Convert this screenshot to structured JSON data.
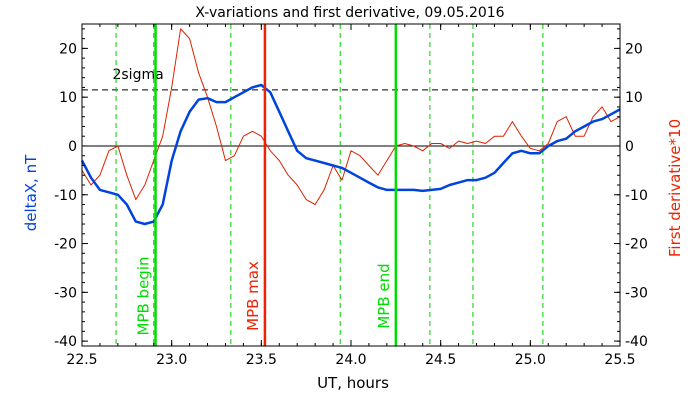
{
  "chart_data": {
    "type": "line",
    "title": "X-variations and first derivative, 09.05.2016",
    "xlabel": "UT, hours",
    "ylabel_left": "deltaX, nT",
    "ylabel_right": "First derivative*10",
    "xlim": [
      22.5,
      25.5
    ],
    "ylim": [
      -41,
      25
    ],
    "x_ticks": [
      22.5,
      23.0,
      23.5,
      24.0,
      24.5,
      25.0,
      25.5
    ],
    "x_tick_labels": [
      "22.5",
      "23.0",
      "23.5",
      "24.0",
      "24.5",
      "25.0",
      "25.5"
    ],
    "y_ticks": [
      -40,
      -30,
      -20,
      -10,
      0,
      10,
      20
    ],
    "y_tick_labels": [
      "-40",
      "-30",
      "-20",
      "-10",
      "0",
      "10",
      "20"
    ],
    "grid": false,
    "sigma_level": 11.5,
    "sigma_label": "2sigma",
    "markers": [
      {
        "x": 22.91,
        "label": "MPB begin",
        "color": "#00dd00"
      },
      {
        "x": 23.52,
        "label": "MPB max",
        "color": "#ee2200"
      },
      {
        "x": 24.25,
        "label": "MPB end",
        "color": "#00dd00"
      }
    ],
    "dashed_verticals": [
      22.69,
      22.9,
      23.33,
      23.94,
      24.44,
      24.68,
      25.07
    ],
    "series": [
      {
        "name": "deltaX, nT",
        "color": "#0044dd",
        "x": [
          22.5,
          22.55,
          22.6,
          22.65,
          22.7,
          22.75,
          22.8,
          22.85,
          22.9,
          22.95,
          23.0,
          23.05,
          23.1,
          23.15,
          23.2,
          23.25,
          23.3,
          23.35,
          23.4,
          23.45,
          23.5,
          23.55,
          23.6,
          23.65,
          23.7,
          23.75,
          23.8,
          23.85,
          23.9,
          23.95,
          24.0,
          24.05,
          24.1,
          24.15,
          24.2,
          24.25,
          24.3,
          24.35,
          24.4,
          24.45,
          24.5,
          24.55,
          24.6,
          24.65,
          24.7,
          24.75,
          24.8,
          24.85,
          24.9,
          24.95,
          25.0,
          25.05,
          25.1,
          25.15,
          25.2,
          25.25,
          25.3,
          25.35,
          25.4,
          25.45,
          25.5
        ],
        "values": [
          -3,
          -6.5,
          -9,
          -9.5,
          -10,
          -12,
          -15.5,
          -16,
          -15.5,
          -12,
          -3,
          3,
          7,
          9.5,
          9.8,
          9,
          9,
          10,
          11,
          12,
          12.5,
          11,
          7,
          3,
          -1,
          -2.5,
          -3,
          -3.5,
          -4,
          -4.5,
          -5.5,
          -6.5,
          -7.5,
          -8.5,
          -9,
          -9,
          -9,
          -9,
          -9.2,
          -9,
          -8.8,
          -8,
          -7.5,
          -7,
          -7,
          -6.5,
          -5.5,
          -3.5,
          -1.5,
          -1,
          -1.5,
          -1.5,
          0,
          1,
          1.5,
          3,
          4,
          5,
          5.5,
          6.5,
          7.5
        ]
      },
      {
        "name": "First derivative*10",
        "color": "#dd2200",
        "x": [
          22.5,
          22.55,
          22.6,
          22.65,
          22.7,
          22.75,
          22.8,
          22.85,
          22.9,
          22.95,
          23.0,
          23.05,
          23.1,
          23.15,
          23.2,
          23.25,
          23.3,
          23.35,
          23.4,
          23.45,
          23.5,
          23.55,
          23.6,
          23.65,
          23.7,
          23.75,
          23.8,
          23.85,
          23.9,
          23.95,
          24.0,
          24.05,
          24.1,
          24.15,
          24.2,
          24.25,
          24.3,
          24.35,
          24.4,
          24.45,
          24.5,
          24.55,
          24.6,
          24.65,
          24.7,
          24.75,
          24.8,
          24.85,
          24.9,
          24.95,
          25.0,
          25.05,
          25.1,
          25.15,
          25.2,
          25.25,
          25.3,
          25.35,
          25.4,
          25.45,
          25.5
        ],
        "values": [
          -5,
          -8,
          -6,
          -1,
          0,
          -6,
          -11,
          -8,
          -3,
          2,
          12,
          24,
          22,
          15,
          10,
          4,
          -3,
          -2,
          2,
          3,
          2,
          -1,
          -3,
          -6,
          -8,
          -11,
          -12,
          -9,
          -4,
          -7,
          -1,
          -2,
          -4,
          -6,
          -3,
          0,
          0.5,
          0,
          -1,
          0.5,
          0.5,
          -0.5,
          1,
          0.5,
          1,
          0.5,
          2,
          2,
          5,
          2,
          -0.5,
          -1,
          0.5,
          5,
          6,
          2,
          2,
          6,
          8,
          5,
          6
        ]
      }
    ]
  }
}
